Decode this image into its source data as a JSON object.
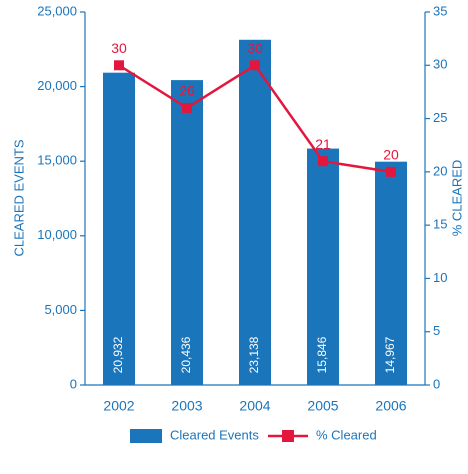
{
  "chart_data": {
    "type": "bar",
    "ylabel": "CLEARED EVENTS",
    "y2label": "% CLEARED",
    "categories": [
      "2002",
      "2003",
      "2004",
      "2005",
      "2006"
    ],
    "series": [
      {
        "name": "Cleared Events",
        "type": "bar",
        "color": "#1b75bb",
        "values": [
          20932,
          20436,
          23138,
          15846,
          14967
        ],
        "value_labels": [
          "20,932",
          "20,436",
          "23,138",
          "15,846",
          "14,967"
        ]
      },
      {
        "name": "% Cleared",
        "type": "line",
        "axis": "y2",
        "color": "#e3173e",
        "values": [
          30,
          26,
          30,
          21,
          20
        ]
      }
    ],
    "ylim": [
      0,
      25000
    ],
    "yticks": [
      0,
      {
        "value": 5000,
        "label": "5,000"
      },
      {
        "value": 10000,
        "label": "10,000"
      },
      {
        "value": 15000,
        "label": "15,000"
      },
      {
        "value": 20000,
        "label": "20,000"
      },
      {
        "value": 25000,
        "label": "25,000"
      }
    ],
    "y2lim": [
      0,
      35
    ],
    "y2ticks": [
      0,
      5,
      10,
      15,
      20,
      25,
      30,
      35
    ],
    "legend": "bottom"
  }
}
